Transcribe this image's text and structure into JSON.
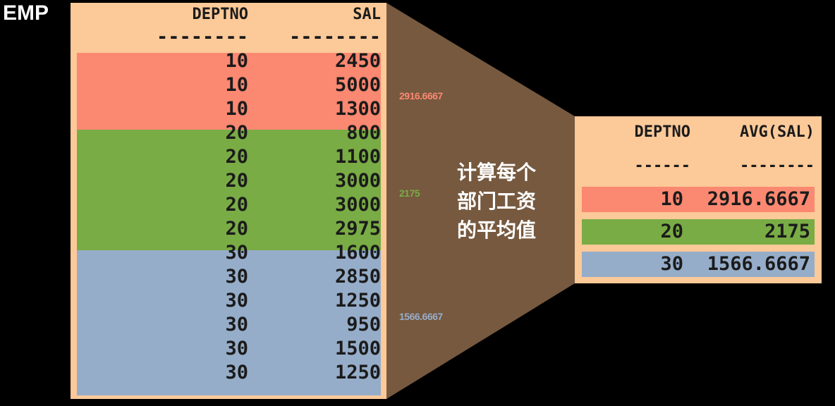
{
  "emp_label": "EMP",
  "emp_table": {
    "headers": {
      "deptno": "DEPTNO",
      "sal": "SAL"
    },
    "separator": {
      "deptno": "--------",
      "sal": "--------"
    },
    "rows": [
      {
        "deptno": "10",
        "sal": "2450"
      },
      {
        "deptno": "10",
        "sal": "5000"
      },
      {
        "deptno": "10",
        "sal": "1300"
      },
      {
        "deptno": "20",
        "sal": "800"
      },
      {
        "deptno": "20",
        "sal": "1100"
      },
      {
        "deptno": "20",
        "sal": "3000"
      },
      {
        "deptno": "20",
        "sal": "3000"
      },
      {
        "deptno": "20",
        "sal": "2975"
      },
      {
        "deptno": "30",
        "sal": "1600"
      },
      {
        "deptno": "30",
        "sal": "2850"
      },
      {
        "deptno": "30",
        "sal": "1250"
      },
      {
        "deptno": "30",
        "sal": "950"
      },
      {
        "deptno": "30",
        "sal": "1500"
      },
      {
        "deptno": "30",
        "sal": "1250"
      }
    ]
  },
  "group_averages": [
    {
      "value": "2916.6667",
      "color": "#fb8871"
    },
    {
      "value": "2175",
      "color": "#79ac45"
    },
    {
      "value": "1566.6667",
      "color": "#96adc9"
    }
  ],
  "funnel_caption": [
    "计算每个",
    "部门工资",
    "的平均值"
  ],
  "result_table": {
    "headers": {
      "deptno": "DEPTNO",
      "avg": "AVG(SAL)"
    },
    "separator": {
      "deptno": "------",
      "avg": "--------"
    },
    "rows": [
      {
        "deptno": "10",
        "avg": "2916.6667",
        "color": "#fb8871"
      },
      {
        "deptno": "20",
        "avg": "2175",
        "color": "#79ac45"
      },
      {
        "deptno": "30",
        "avg": "1566.6667",
        "color": "#96adc9"
      }
    ]
  },
  "colors": {
    "panel": "#fcc998",
    "funnel": "#76593f",
    "dept10": "#fb8871",
    "dept20": "#79ac45",
    "dept30": "#96adc9"
  }
}
